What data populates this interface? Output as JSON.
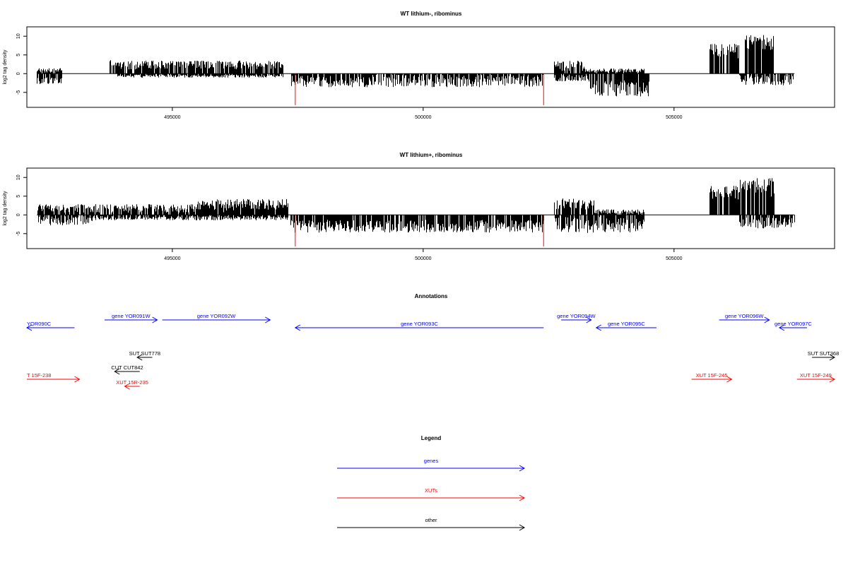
{
  "chart_data": [
    {
      "type": "bar",
      "title": "WT lithium-, ribominus",
      "ylabel": "log2 tag density",
      "xlabel": "",
      "xlim": [
        492100,
        508200
      ],
      "ylim": [
        -9,
        12.5
      ],
      "yticks": [
        10,
        5,
        0,
        -5
      ],
      "xticks": [
        495000,
        500000,
        505000
      ],
      "grid": false,
      "segments": [
        {
          "from": 492300,
          "to": 492800,
          "sign": "pos",
          "mean": 0.5,
          "amp": 1.5
        },
        {
          "from": 492300,
          "to": 492800,
          "sign": "neg",
          "mean": 1.6,
          "amp": 1.8
        },
        {
          "from": 493750,
          "to": 494900,
          "sign": "pos",
          "mean": 2.0,
          "amp": 2.5
        },
        {
          "from": 494900,
          "to": 497200,
          "sign": "pos",
          "mean": 2.0,
          "amp": 2.3
        },
        {
          "from": 493900,
          "to": 497200,
          "sign": "neg",
          "mean": 0.3,
          "amp": 1.2
        },
        {
          "from": 497350,
          "to": 502400,
          "sign": "neg",
          "mean": 1.4,
          "amp": 3.4
        },
        {
          "from": 502600,
          "to": 503200,
          "sign": "pos",
          "mean": 1.6,
          "amp": 2.8
        },
        {
          "from": 503200,
          "to": 504400,
          "sign": "pos",
          "mean": 0.6,
          "amp": 1.2
        },
        {
          "from": 502600,
          "to": 503300,
          "sign": "neg",
          "mean": 0.9,
          "amp": 1.8
        },
        {
          "from": 503300,
          "to": 504500,
          "sign": "neg",
          "mean": 3.3,
          "amp": 4.3
        },
        {
          "from": 505700,
          "to": 506300,
          "sign": "pos",
          "mean": 5.4,
          "amp": 4.0
        },
        {
          "from": 506400,
          "to": 507000,
          "sign": "pos",
          "mean": 7.4,
          "amp": 4.6
        },
        {
          "from": 506300,
          "to": 507400,
          "sign": "neg",
          "mean": 1.2,
          "amp": 3.0
        }
      ],
      "red_marks": [
        497450,
        502400
      ]
    },
    {
      "type": "bar",
      "title": "WT lithium+, ribominus",
      "ylabel": "log2 tag density",
      "xlabel": "",
      "xlim": [
        492100,
        508200
      ],
      "ylim": [
        -9,
        12.5
      ],
      "yticks": [
        10,
        5,
        0,
        -5
      ],
      "xticks": [
        495000,
        500000,
        505000
      ],
      "grid": false,
      "segments": [
        {
          "from": 492300,
          "to": 497300,
          "sign": "pos",
          "mean": 1.4,
          "amp": 2.3
        },
        {
          "from": 495500,
          "to": 497300,
          "sign": "pos",
          "mean": 2.3,
          "amp": 3.0
        },
        {
          "from": 492300,
          "to": 493400,
          "sign": "neg",
          "mean": 1.0,
          "amp": 2.8
        },
        {
          "from": 493400,
          "to": 497300,
          "sign": "neg",
          "mean": 0.4,
          "amp": 1.6
        },
        {
          "from": 497350,
          "to": 502400,
          "sign": "neg",
          "mean": 2.5,
          "amp": 3.4
        },
        {
          "from": 502600,
          "to": 503400,
          "sign": "pos",
          "mean": 2.4,
          "amp": 3.3
        },
        {
          "from": 502600,
          "to": 504400,
          "sign": "neg",
          "mean": 2.0,
          "amp": 4.4
        },
        {
          "from": 503400,
          "to": 504400,
          "sign": "pos",
          "mean": 0.6,
          "amp": 1.4
        },
        {
          "from": 505700,
          "to": 506300,
          "sign": "pos",
          "mean": 5.3,
          "amp": 3.8
        },
        {
          "from": 506300,
          "to": 507000,
          "sign": "pos",
          "mean": 6.3,
          "amp": 5.4
        },
        {
          "from": 506300,
          "to": 507400,
          "sign": "neg",
          "mean": 1.7,
          "amp": 3.0
        }
      ],
      "red_marks": [
        497450,
        502400
      ]
    },
    {
      "type": "diagram",
      "title": "Annotations",
      "xlim": [
        492100,
        508200
      ],
      "features": [
        {
          "label": "YOR090C",
          "class": "gene",
          "strand": "-",
          "start": 491000,
          "end": 493050,
          "row": 1
        },
        {
          "label": "gene YOR091W",
          "class": "gene",
          "strand": "+",
          "start": 493650,
          "end": 494700,
          "row": 0
        },
        {
          "label": "gene YOR092W",
          "class": "gene",
          "strand": "+",
          "start": 494800,
          "end": 496950,
          "row": 0
        },
        {
          "label": "gene YOR093C",
          "class": "gene",
          "strand": "-",
          "start": 497450,
          "end": 502400,
          "row": 1
        },
        {
          "label": "gene YOR094W",
          "class": "gene",
          "strand": "+",
          "start": 502750,
          "end": 503350,
          "row": 0
        },
        {
          "label": "gene YOR095C",
          "class": "gene",
          "strand": "-",
          "start": 503450,
          "end": 504650,
          "row": 1
        },
        {
          "label": "gene YOR096W",
          "class": "gene",
          "strand": "+",
          "start": 505900,
          "end": 506900,
          "row": 0
        },
        {
          "label": "gene YOR097C",
          "class": "gene",
          "strand": "-",
          "start": 507100,
          "end": 507650,
          "row": 1
        },
        {
          "label": "SUT SUT778",
          "class": "other",
          "strand": "-",
          "start": 494300,
          "end": 494600,
          "row": 2
        },
        {
          "label": "CUT CUT842",
          "class": "other",
          "strand": "-",
          "start": 493850,
          "end": 494350,
          "row": 3
        },
        {
          "label": "SUT SUT368",
          "class": "other",
          "strand": "+",
          "start": 507750,
          "end": 508250,
          "row": 2
        },
        {
          "label": "T 15F-238",
          "class": "XUT",
          "strand": "+",
          "start": 491000,
          "end": 493150,
          "row": 4
        },
        {
          "label": "XUT 15R-235",
          "class": "XUT",
          "strand": "-",
          "start": 494050,
          "end": 494350,
          "row": 5
        },
        {
          "label": "XUT 15F-245",
          "class": "XUT",
          "strand": "+",
          "start": 505350,
          "end": 506150,
          "row": 4
        },
        {
          "label": "XUT 15F-249",
          "class": "XUT",
          "strand": "+",
          "start": 507450,
          "end": 508200,
          "row": 4
        }
      ]
    },
    {
      "type": "legend",
      "title": "Legend",
      "entries": [
        {
          "label": "genes",
          "color": "#0000ff"
        },
        {
          "label": "XUTs",
          "color": "#ff0000"
        },
        {
          "label": "other",
          "color": "#000000"
        }
      ]
    }
  ],
  "colors": {
    "gene": "#0000ff",
    "XUT": "#ff0000",
    "other": "#000000",
    "marker": "#ff0000",
    "bar": "#000000"
  }
}
